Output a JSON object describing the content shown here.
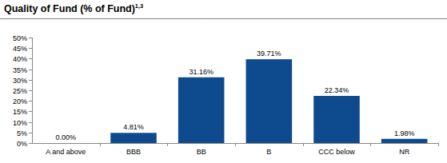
{
  "chart_data": {
    "type": "bar",
    "title": "Quality of Fund (% of Fund)",
    "annotations": [
      "1,3"
    ],
    "categories": [
      "A and above",
      "BBB",
      "BB",
      "B",
      "CCC below",
      "NR"
    ],
    "values": [
      0,
      4.81,
      31.16,
      39.71,
      22.34,
      1.98
    ],
    "value_labels": [
      "0.00%",
      "4.81%",
      "31.16%",
      "39.71%",
      "22.34%",
      "1.98%"
    ],
    "data_labels": true,
    "color": "#0e4a8e",
    "ylim": [
      0,
      50
    ],
    "yticks": [
      {
        "value": 0,
        "label": "0%"
      },
      {
        "value": 5,
        "label": "5%"
      },
      {
        "value": 10,
        "label": "10%"
      },
      {
        "value": 15,
        "label": "15%"
      },
      {
        "value": 20,
        "label": "20%"
      },
      {
        "value": 25,
        "label": "25%"
      },
      {
        "value": 30,
        "label": "30%"
      },
      {
        "value": 35,
        "label": "35%"
      },
      {
        "value": 40,
        "label": "40%"
      },
      {
        "value": 45,
        "label": "45%"
      },
      {
        "value": 50,
        "label": "50%"
      }
    ],
    "grid": false
  }
}
